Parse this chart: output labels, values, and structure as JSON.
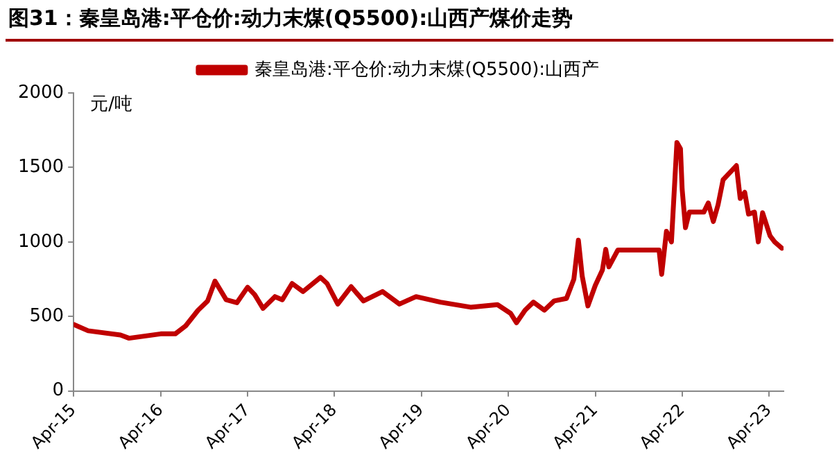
{
  "chart_data": {
    "type": "line",
    "title": "图31：秦皇岛港:平仓价:动力末煤(Q5500):山西产煤价走势",
    "ylabel": "元/吨",
    "legend": "top",
    "line_style": "solid",
    "marker": "none",
    "grid": false,
    "xlim": [
      "2015-04-01",
      "2023-06-01"
    ],
    "xticks": [
      {
        "value": "2015-04",
        "label": "Apr-15"
      },
      {
        "value": "2016-04",
        "label": "Apr-16"
      },
      {
        "value": "2017-04",
        "label": "Apr-17"
      },
      {
        "value": "2018-04",
        "label": "Apr-18"
      },
      {
        "value": "2019-04",
        "label": "Apr-19"
      },
      {
        "value": "2020-04",
        "label": "Apr-20"
      },
      {
        "value": "2021-04",
        "label": "Apr-21"
      },
      {
        "value": "2022-04",
        "label": "Apr-22"
      },
      {
        "value": "2023-04",
        "label": "Apr-23"
      }
    ],
    "ylim": [
      0,
      2000
    ],
    "yticks": [
      0,
      500,
      1000,
      1500,
      2000
    ],
    "x": [
      "2015-04-01",
      "2015-06-01",
      "2015-10-15",
      "2015-11-20",
      "2016-04-01",
      "2016-06-01",
      "2016-07-15",
      "2016-09-05",
      "2016-10-15",
      "2016-11-15",
      "2017-01-01",
      "2017-02-15",
      "2017-04-01",
      "2017-05-01",
      "2017-06-05",
      "2017-07-25",
      "2017-08-25",
      "2017-10-05",
      "2017-11-20",
      "2018-02-01",
      "2018-03-01",
      "2018-04-15",
      "2018-06-10",
      "2018-08-01",
      "2018-10-20",
      "2018-12-30",
      "2019-03-10",
      "2019-04-01",
      "2019-06-20",
      "2019-10-25",
      "2020-02-15",
      "2020-04-10",
      "2020-05-05",
      "2020-06-10",
      "2020-07-15",
      "2020-08-30",
      "2020-10-10",
      "2020-12-01",
      "2021-01-01",
      "2021-01-20",
      "2021-02-05",
      "2021-03-01",
      "2021-04-01",
      "2021-05-01",
      "2021-05-15",
      "2021-05-28",
      "2021-07-05",
      "2021-12-25",
      "2022-01-05",
      "2022-01-25",
      "2022-02-15",
      "2022-03-10",
      "2022-03-25",
      "2022-04-01",
      "2022-04-15",
      "2022-05-01",
      "2022-07-01",
      "2022-07-20",
      "2022-08-10",
      "2022-08-30",
      "2022-09-20",
      "2022-11-15",
      "2022-12-01",
      "2022-12-20",
      "2023-01-05",
      "2023-01-30",
      "2023-02-15",
      "2023-03-05",
      "2023-04-05",
      "2023-04-25",
      "2023-05-25"
    ],
    "series": [
      {
        "name": "秦皇岛港:平仓价:动力末煤(Q5500):山西产",
        "color": "#c00000",
        "values": [
          446,
          404,
          375,
          354,
          383,
          383,
          437,
          542,
          604,
          737,
          612,
          592,
          696,
          646,
          554,
          633,
          612,
          721,
          667,
          762,
          721,
          583,
          700,
          604,
          667,
          583,
          633,
          625,
          596,
          562,
          579,
          521,
          458,
          542,
          596,
          542,
          604,
          621,
          750,
          1012,
          771,
          571,
          708,
          812,
          950,
          833,
          946,
          946,
          783,
          1071,
          1000,
          1667,
          1625,
          1354,
          1096,
          1200,
          1200,
          1262,
          1137,
          1250,
          1417,
          1512,
          1292,
          1333,
          1187,
          1200,
          1000,
          1196,
          1042,
          1000,
          958
        ]
      }
    ]
  }
}
